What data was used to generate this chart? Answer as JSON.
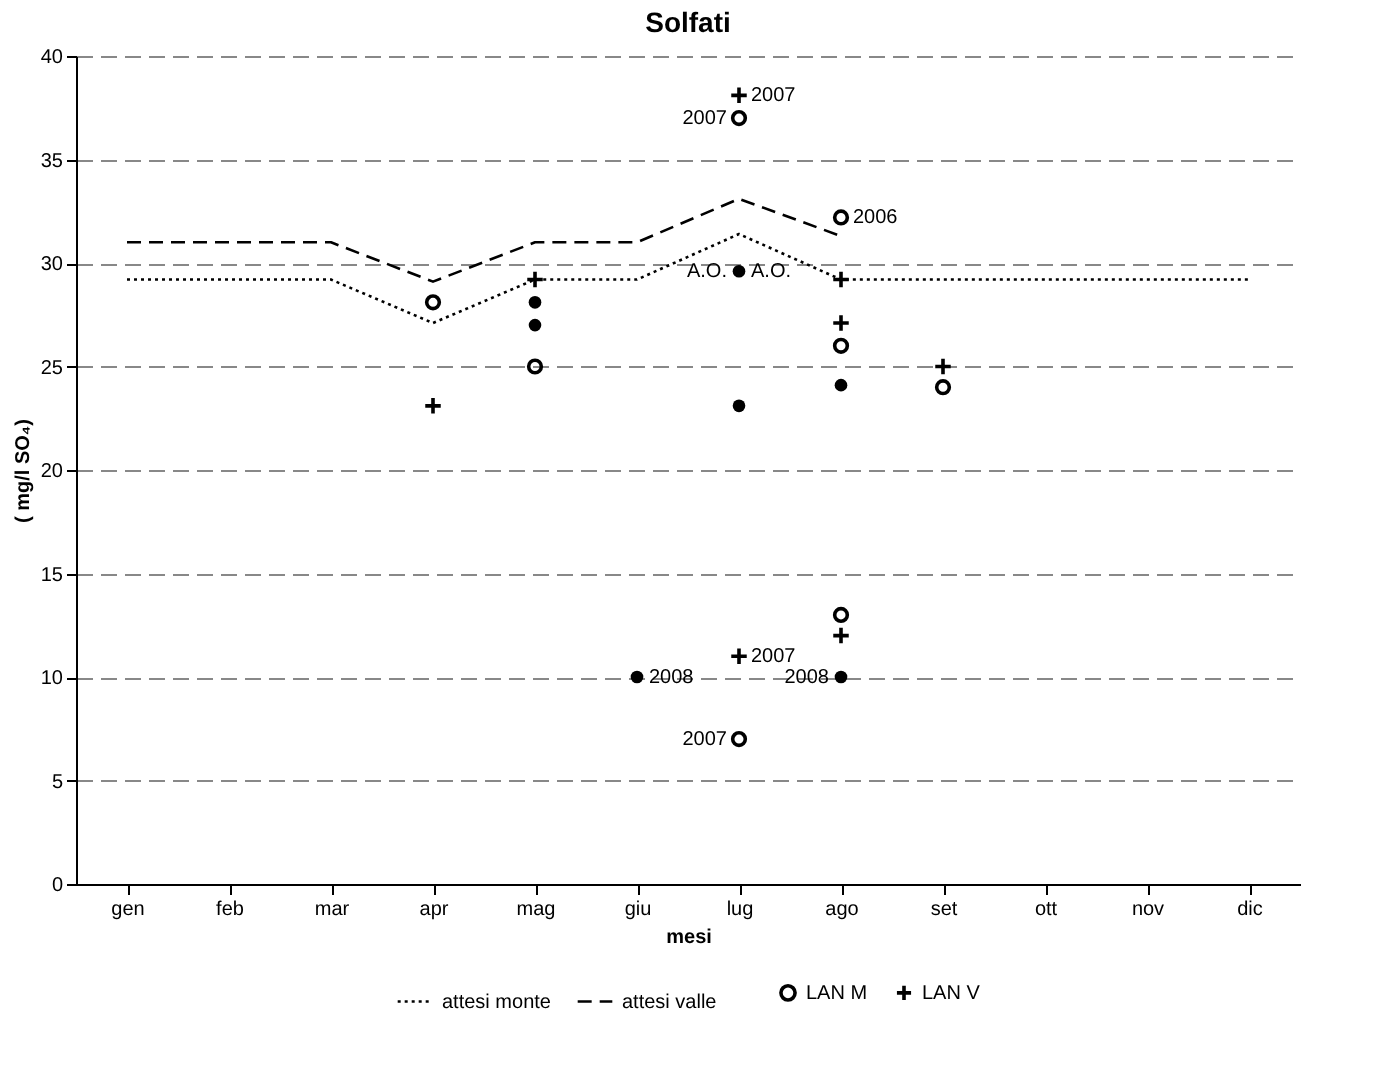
{
  "chart_data": {
    "type": "line",
    "title": "Solfati",
    "xlabel": "mesi",
    "ylabel": "( mg/l SO₄)",
    "categories": [
      "gen",
      "feb",
      "mar",
      "apr",
      "mag",
      "giu",
      "lug",
      "ago",
      "set",
      "ott",
      "nov",
      "dic"
    ],
    "ylim": [
      0,
      40
    ],
    "yticks": [
      0,
      5,
      10,
      15,
      20,
      25,
      30,
      35,
      40
    ],
    "grid": "y",
    "legend": "bottom",
    "series": [
      {
        "name": "attesi monte",
        "color": "#000000",
        "line_style": "dotted",
        "marker": "none",
        "values": [
          29.2,
          29.2,
          29.2,
          27.1,
          29.2,
          29.2,
          31.4,
          29.2,
          29.2,
          29.2,
          29.2,
          29.2
        ]
      },
      {
        "name": "attesi valle",
        "color": "#000000",
        "line_style": "dashed",
        "marker": "none",
        "values": [
          31,
          31,
          31,
          29.1,
          31,
          31,
          33.1,
          31.3,
          null,
          null,
          null,
          null
        ]
      },
      {
        "name": "LAN M",
        "type": "scatter",
        "color": "#000000",
        "marker": "circle",
        "x": [
          "apr",
          "mag",
          "lug",
          "lug",
          "ago",
          "ago",
          "ago",
          "set"
        ],
        "values": [
          28.1,
          25,
          37,
          7,
          32.2,
          26,
          13,
          24
        ]
      },
      {
        "name": "LAN V",
        "type": "scatter",
        "color": "#000000",
        "marker": "cross",
        "x": [
          "apr",
          "mag",
          "lug",
          "lug",
          "ago",
          "ago",
          "ago",
          "set"
        ],
        "values": [
          23.1,
          29.2,
          38.1,
          11,
          29.2,
          27.1,
          12,
          25
        ]
      },
      {
        "type": "scatter",
        "color": "#000000",
        "marker": "circle",
        "x": [
          "mag",
          "mag",
          "giu",
          "lug",
          "lug",
          "ago",
          "ago"
        ],
        "values": [
          28.1,
          27,
          10,
          29.6,
          23.1,
          24.1,
          10
        ]
      }
    ],
    "annotations": [
      {
        "text": "2007",
        "x": "lug",
        "y": 38.1
      },
      {
        "text": "2007",
        "x": "lug",
        "y": 37
      },
      {
        "text": "2006",
        "x": "ago",
        "y": 32.2
      },
      {
        "text": "A.O.",
        "x": "lug",
        "y": 29.6
      },
      {
        "text": "A.O.",
        "x": "lug",
        "y": 29.6
      },
      {
        "text": "2008",
        "x": "giu",
        "y": 10
      },
      {
        "text": "2007",
        "x": "lug",
        "y": 11
      },
      {
        "text": "2008",
        "x": "ago",
        "y": 10
      },
      {
        "text": "2007",
        "x": "lug",
        "y": 7
      }
    ]
  }
}
